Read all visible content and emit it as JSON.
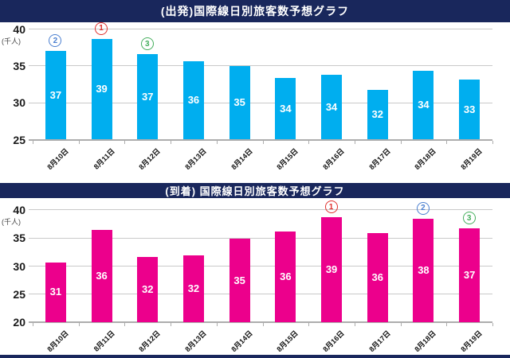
{
  "colors": {
    "navy_bar": "#19275C",
    "gridline": "#C9C9C9",
    "axis": "#ADADAD",
    "value_label": "#FFFFFF",
    "departure_bar": "#00AEEF",
    "arrival_bar": "#EC008C",
    "rank1_red": "#E0312E",
    "rank2_blue": "#4A7FD0",
    "rank3_green": "#44AE5C"
  },
  "chart_data": [
    {
      "type": "bar",
      "title": "(出発)国際線日別旅客数予想グラフ",
      "unit": "(千人)",
      "categories": [
        "8月10日",
        "8月11日",
        "8月12日",
        "8月13日",
        "8月14日",
        "8月15日",
        "8月16日",
        "8月17日",
        "8月18日",
        "8月19日"
      ],
      "values": [
        37,
        39,
        37,
        36,
        35,
        34,
        34,
        32,
        34,
        33
      ],
      "bar_heights_estimate": [
        37.0,
        38.7,
        36.6,
        35.6,
        35.0,
        33.4,
        33.8,
        31.7,
        34.3,
        33.1
      ],
      "bar_color": "#00AEEF",
      "ylim": [
        25,
        40
      ],
      "y_ticks": [
        40,
        35,
        30,
        25
      ],
      "grid": true,
      "legend": "none",
      "rank_markers": [
        {
          "rank": "①",
          "digit": "1",
          "category": "8月11日",
          "category_index": 1,
          "color": "#E0312E"
        },
        {
          "rank": "②",
          "digit": "2",
          "category": "8月10日",
          "category_index": 0,
          "color": "#4A7FD0"
        },
        {
          "rank": "③",
          "digit": "3",
          "category": "8月12日",
          "category_index": 2,
          "color": "#44AE5C"
        }
      ]
    },
    {
      "type": "bar",
      "title": "(到着) 国際線日別旅客数予想グラフ",
      "unit": "(千人)",
      "categories": [
        "8月10日",
        "8月11日",
        "8月12日",
        "8月13日",
        "8月14日",
        "8月15日",
        "8月16日",
        "8月17日",
        "8月18日",
        "8月19日"
      ],
      "values": [
        31,
        36,
        32,
        32,
        35,
        36,
        39,
        36,
        38,
        37
      ],
      "bar_heights_estimate": [
        30.7,
        36.4,
        31.7,
        31.9,
        34.9,
        36.2,
        38.7,
        35.9,
        38.5,
        36.7
      ],
      "bar_color": "#EC008C",
      "ylim": [
        20,
        40
      ],
      "y_ticks": [
        40,
        35,
        30,
        25,
        20
      ],
      "grid": true,
      "legend": "none",
      "rank_markers": [
        {
          "rank": "①",
          "digit": "1",
          "category": "8月16日",
          "category_index": 6,
          "color": "#E0312E"
        },
        {
          "rank": "②",
          "digit": "2",
          "category": "8月18日",
          "category_index": 8,
          "color": "#4A7FD0"
        },
        {
          "rank": "③",
          "digit": "3",
          "category": "8月19日",
          "category_index": 9,
          "color": "#44AE5C"
        }
      ]
    }
  ]
}
